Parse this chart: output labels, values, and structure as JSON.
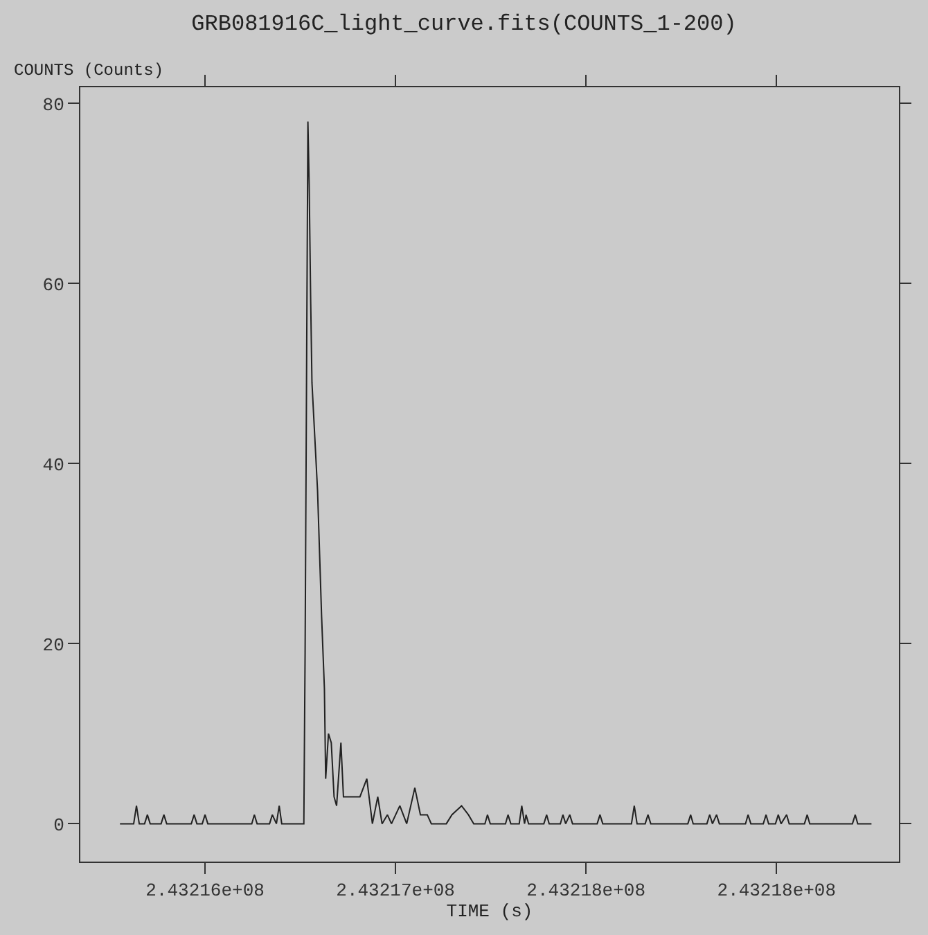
{
  "chart_data": {
    "type": "line",
    "title": "GRB081916C_light_curve.fits(COUNTS_1-200)",
    "xlabel": "TIME (s)",
    "ylabel": "COUNTS (Counts)",
    "x": [
      243215665,
      243215719,
      243215730,
      243215741,
      243215762,
      243215773,
      243215784,
      243215827,
      243215838,
      243215849,
      243215946,
      243215957,
      243215968,
      243215989,
      243216000,
      243216011,
      243216184,
      243216194,
      243216205,
      243216254,
      243216265,
      243216281,
      243216292,
      243216302,
      243216389,
      243216394,
      243216405,
      243216410,
      243216416,
      243216421,
      243216432,
      243216443,
      243216459,
      243216470,
      243216475,
      243216486,
      243216497,
      243216508,
      243216518,
      243216535,
      243216545,
      243216610,
      243216637,
      243216659,
      243216680,
      243216697,
      243216718,
      243216734,
      243216767,
      243216794,
      243216826,
      243216848,
      243216875,
      243216891,
      243216950,
      243216972,
      243217010,
      243217037,
      243217058,
      243217102,
      243217112,
      243217123,
      243217183,
      243217193,
      243217204,
      243217237,
      243217247,
      243217258,
      243217264,
      243217274,
      243217334,
      243217345,
      243217355,
      243217399,
      243217409,
      243217420,
      243217436,
      243217447,
      243217544,
      243217555,
      243217566,
      243217679,
      243217690,
      243217701,
      243217733,
      243217744,
      243217755,
      243217901,
      243217912,
      243217922,
      243217976,
      243217987,
      243217998,
      243218014,
      243218025,
      243218128,
      243218138,
      243218149,
      243218198,
      243218209,
      243218219,
      243218246,
      243218257,
      243218268,
      243218290,
      243218300,
      243218360,
      243218371,
      243218381,
      243218549,
      243218560,
      243218570,
      243218624
    ],
    "series": [
      {
        "color": "#222222",
        "values": [
          0,
          0,
          2,
          0,
          0,
          1,
          0,
          0,
          1,
          0,
          0,
          1,
          0,
          0,
          1,
          0,
          0,
          1,
          0,
          0,
          1,
          0,
          2,
          0,
          0,
          19,
          78,
          71,
          58,
          49,
          43,
          37,
          23,
          15,
          5,
          10,
          9,
          3,
          2,
          9,
          3,
          3,
          5,
          0,
          3,
          0,
          1,
          0,
          2,
          0,
          4,
          1,
          1,
          0,
          0,
          1,
          2,
          1,
          0,
          0,
          1,
          0,
          0,
          1,
          0,
          0,
          2,
          0,
          1,
          0,
          0,
          1,
          0,
          0,
          1,
          0,
          1,
          0,
          0,
          1,
          0,
          0,
          2,
          0,
          0,
          1,
          0,
          0,
          1,
          0,
          0,
          1,
          0,
          1,
          0,
          0,
          1,
          0,
          0,
          1,
          0,
          0,
          1,
          0,
          1,
          0,
          0,
          1,
          0,
          0,
          1,
          0,
          0
        ]
      }
    ],
    "xlim": [
      243215509,
      243218732
    ],
    "xticks": [
      {
        "value": 243216000,
        "label": "2.43216e+08"
      },
      {
        "value": 243216750,
        "label": "2.43217e+08"
      },
      {
        "value": 243217500,
        "label": "2.43218e+08"
      },
      {
        "value": 243218250,
        "label": "2.43218e+08"
      }
    ],
    "ylim": [
      -4.2,
      81.8
    ],
    "yticks": [
      0,
      20,
      40,
      60,
      80
    ],
    "grid": false,
    "marker": "none",
    "line_style": "solid"
  }
}
